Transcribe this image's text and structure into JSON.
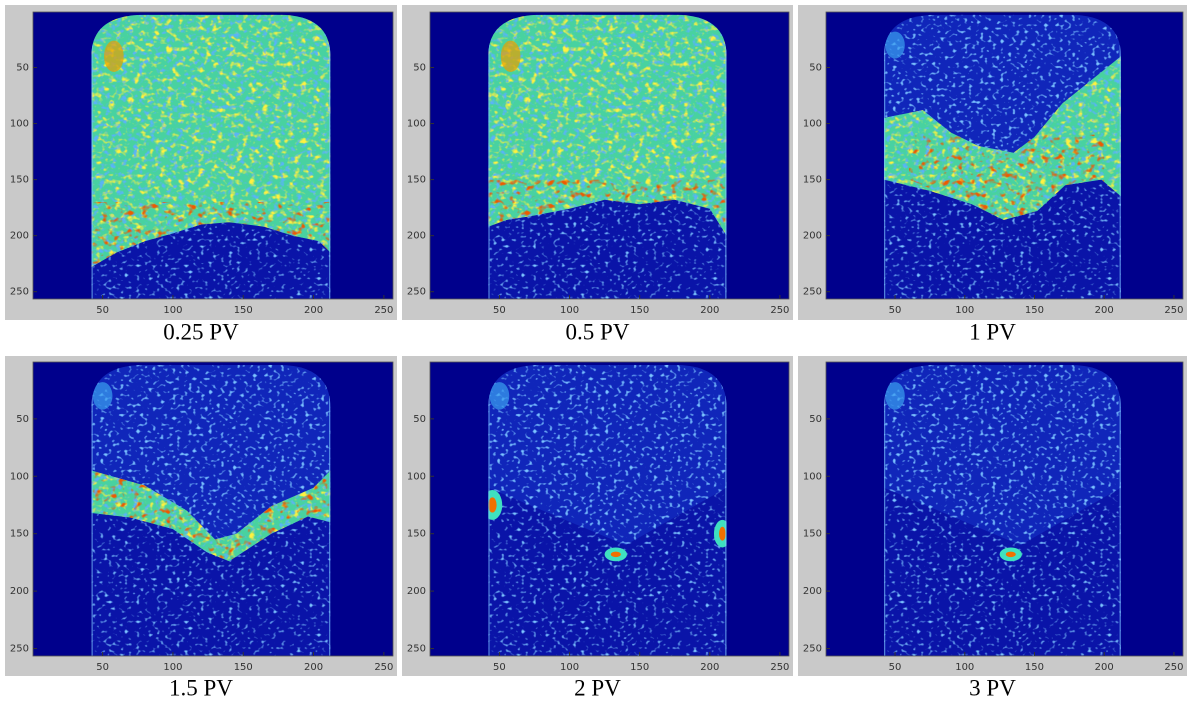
{
  "chart_data": [
    {
      "type": "image",
      "caption": "0.25 PV",
      "xlim": [
        0.5,
        256.5
      ],
      "ylim": [
        0.5,
        256.5
      ],
      "ydir": "reverse",
      "xticks": [
        50,
        100,
        150,
        200,
        250
      ],
      "yticks": [
        50,
        100,
        150,
        200,
        250
      ]
    },
    {
      "type": "image",
      "caption": "0.5 PV",
      "xlim": [
        0.5,
        256.5
      ],
      "ylim": [
        0.5,
        256.5
      ],
      "ydir": "reverse",
      "xticks": [
        50,
        100,
        150,
        200,
        250
      ],
      "yticks": [
        50,
        100,
        150,
        200,
        250
      ]
    },
    {
      "type": "image",
      "caption": "1 PV",
      "xlim": [
        0.5,
        256.5
      ],
      "ylim": [
        0.5,
        256.5
      ],
      "ydir": "reverse",
      "xticks": [
        50,
        100,
        150,
        200,
        250
      ],
      "yticks": [
        50,
        100,
        150,
        200,
        250
      ]
    },
    {
      "type": "image",
      "caption": "1.5 PV",
      "xlim": [
        0.5,
        256.5
      ],
      "ylim": [
        0.5,
        256.5
      ],
      "ydir": "reverse",
      "xticks": [
        50,
        100,
        150,
        200,
        250
      ],
      "yticks": [
        50,
        100,
        150,
        200,
        250
      ]
    },
    {
      "type": "image",
      "caption": "2 PV",
      "xlim": [
        0.5,
        256.5
      ],
      "ylim": [
        0.5,
        256.5
      ],
      "ydir": "reverse",
      "xticks": [
        50,
        100,
        150,
        200,
        250
      ],
      "yticks": [
        50,
        100,
        150,
        200,
        250
      ]
    },
    {
      "type": "image",
      "caption": "3 PV",
      "xlim": [
        0.5,
        256.5
      ],
      "ylim": [
        0.5,
        256.5
      ],
      "ydir": "reverse",
      "xticks": [
        50,
        100,
        150,
        200,
        250
      ],
      "yticks": [
        50,
        100,
        150,
        200,
        250
      ]
    }
  ]
}
